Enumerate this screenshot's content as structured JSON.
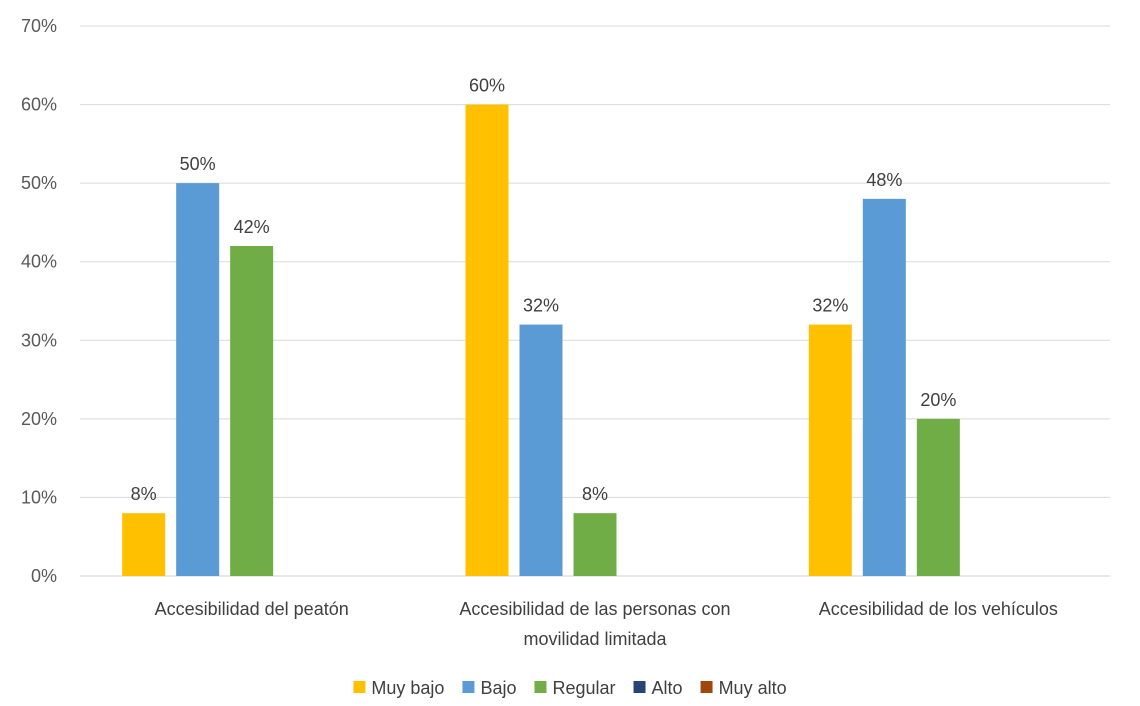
{
  "chart_data": {
    "type": "bar",
    "title": "",
    "xlabel": "",
    "ylabel": "",
    "ylim": [
      0,
      70
    ],
    "y_ticks": [
      "0%",
      "10%",
      "20%",
      "30%",
      "40%",
      "50%",
      "60%",
      "70%"
    ],
    "y_tick_values": [
      0,
      10,
      20,
      30,
      40,
      50,
      60,
      70
    ],
    "grid": true,
    "legend_position": "bottom",
    "categories": [
      "Accesibilidad del peatón",
      "Accesibilidad de las personas con movilidad limitada",
      "Accesibilidad de los vehículos"
    ],
    "category_label_lines": [
      [
        "Accesibilidad del peatón"
      ],
      [
        "Accesibilidad de las personas con",
        "movilidad limitada"
      ],
      [
        "Accesibilidad de los vehículos"
      ]
    ],
    "series": [
      {
        "name": "Muy bajo",
        "color": "#ffc000",
        "values": [
          8,
          60,
          32
        ],
        "labels": [
          "8%",
          "60%",
          "32%"
        ]
      },
      {
        "name": "Bajo",
        "color": "#5b9bd5",
        "values": [
          50,
          32,
          48
        ],
        "labels": [
          "50%",
          "32%",
          "48%"
        ]
      },
      {
        "name": "Regular",
        "color": "#70ad47",
        "values": [
          42,
          8,
          20
        ],
        "labels": [
          "42%",
          "8%",
          "20%"
        ]
      },
      {
        "name": "Alto",
        "color": "#264478",
        "values": [
          0,
          0,
          0
        ],
        "labels": [
          "",
          "",
          ""
        ]
      },
      {
        "name": "Muy alto",
        "color": "#9e480e",
        "values": [
          0,
          0,
          0
        ],
        "labels": [
          "",
          "",
          ""
        ]
      }
    ]
  }
}
